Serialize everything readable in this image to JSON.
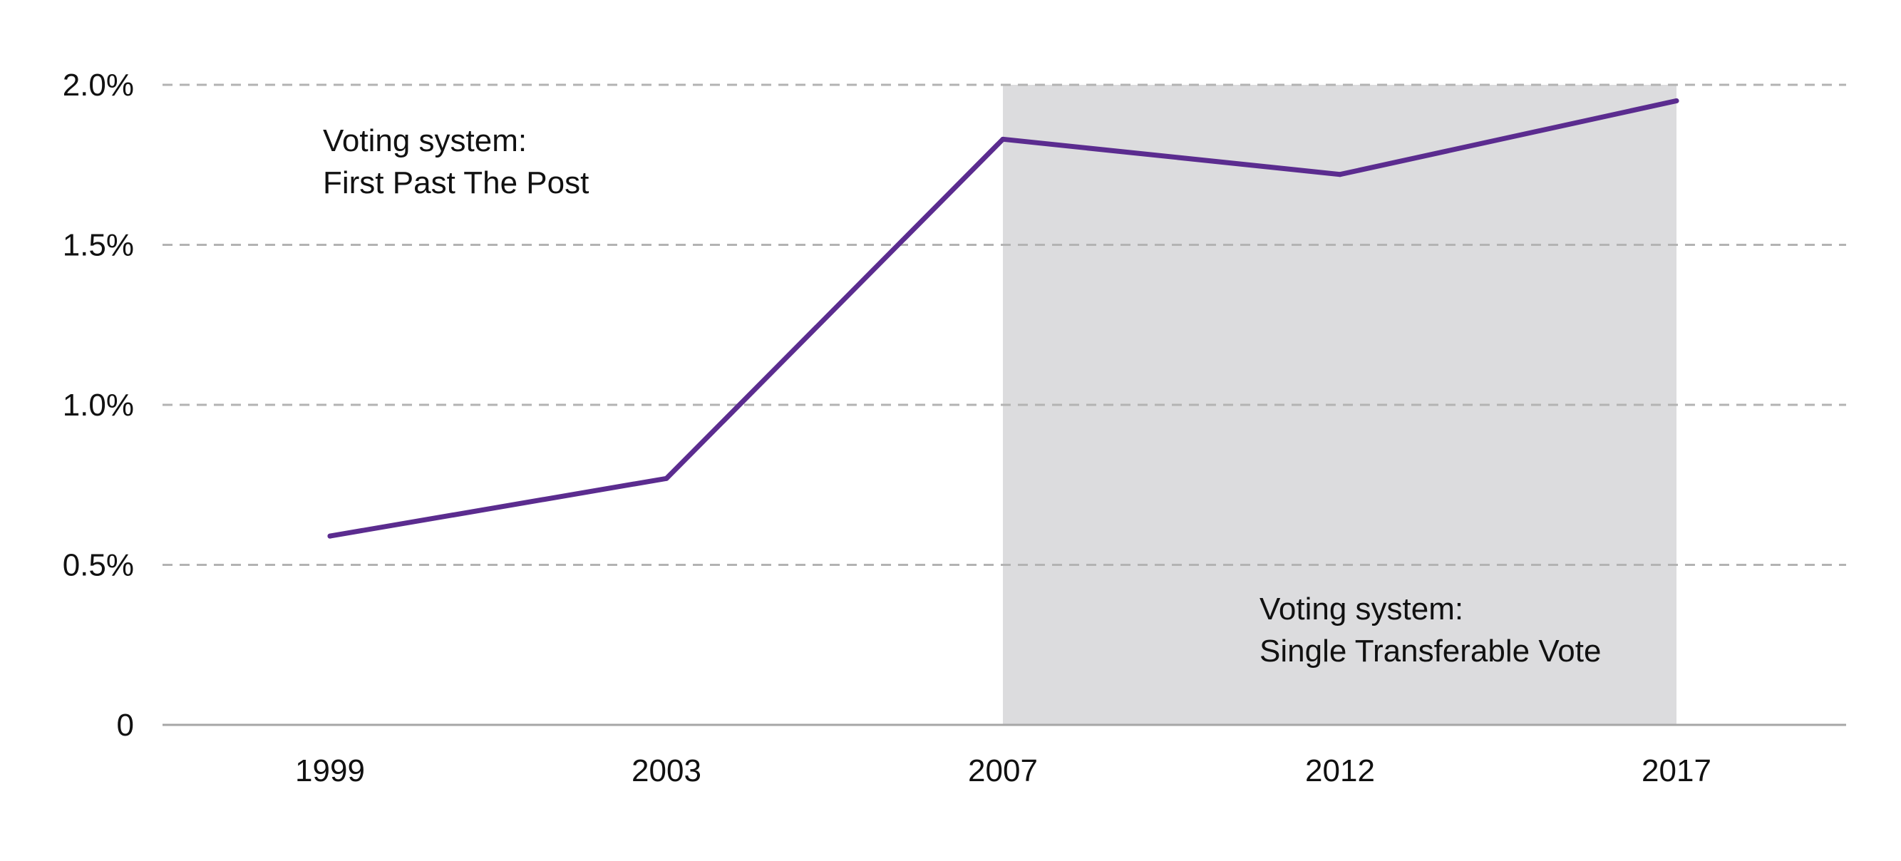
{
  "chart_data": {
    "type": "line",
    "title": "",
    "xlabel": "",
    "ylabel": "",
    "categories": [
      "1999",
      "2003",
      "2007",
      "2012",
      "2017"
    ],
    "series": [
      {
        "values": [
          0.59,
          0.77,
          1.83,
          1.72,
          1.95
        ],
        "color": "#5b2c8f"
      }
    ],
    "ylim": [
      0,
      2.0
    ],
    "y_ticks": [
      {
        "value": 0,
        "label": "0"
      },
      {
        "value": 0.5,
        "label": "0.5%"
      },
      {
        "value": 1.0,
        "label": "1.0%"
      },
      {
        "value": 1.5,
        "label": "1.5%"
      },
      {
        "value": 2.0,
        "label": "2.0%"
      }
    ],
    "grid": true,
    "legend": "none",
    "shaded_region": {
      "from": "2007",
      "to": "2017",
      "color": "#dcdcde"
    },
    "annotations": [
      {
        "lines": [
          "Voting system:",
          "First Past The Post"
        ]
      },
      {
        "lines": [
          "Voting system:",
          "Single Transferable Vote"
        ]
      }
    ]
  }
}
